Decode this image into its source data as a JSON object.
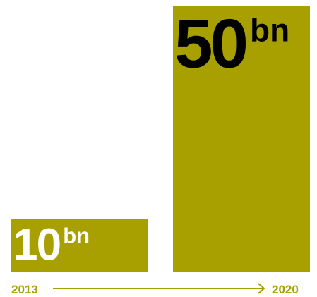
{
  "chart_data": {
    "type": "bar",
    "categories": [
      "2013",
      "2020"
    ],
    "values": [
      10,
      50
    ],
    "value_unit": "bn",
    "value_labels": [
      "10",
      "50"
    ],
    "title": "",
    "xlabel": "",
    "ylabel": "",
    "ylim": [
      0,
      50
    ],
    "grid": false,
    "legend": "none"
  },
  "colors": {
    "bar": "#a8a000",
    "axis": "#a8a000",
    "label_small": "#ffffff",
    "label_large": "#000000"
  }
}
